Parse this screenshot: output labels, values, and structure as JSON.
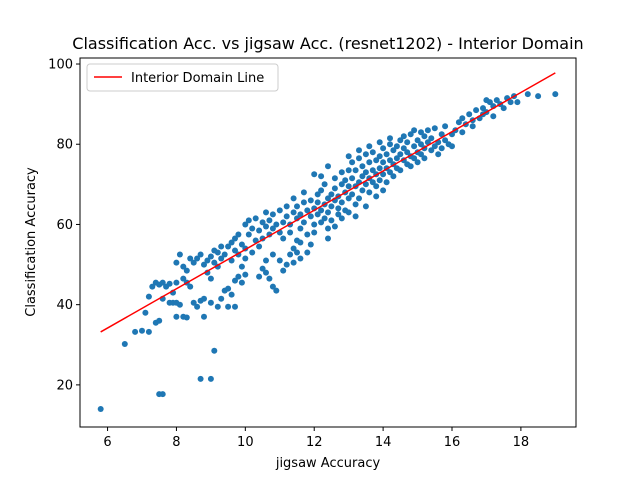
{
  "chart_data": {
    "type": "scatter",
    "title": "Classification Acc. vs jigsaw Acc. (resnet1202) - Interior Domain",
    "xlabel": "jigsaw Accuracy",
    "ylabel": "Classification Accuracy",
    "xlim": [
      5.2,
      19.6
    ],
    "ylim": [
      9.5,
      101.5
    ],
    "xticks": [
      6,
      8,
      10,
      12,
      14,
      16,
      18
    ],
    "yticks": [
      20,
      40,
      60,
      80,
      100
    ],
    "grid": false,
    "legend_position": "top-left",
    "series": [
      {
        "kind": "scatter",
        "color": "#1f77b4",
        "points": [
          [
            5.8,
            14.0
          ],
          [
            6.5,
            30.2
          ],
          [
            6.8,
            33.2
          ],
          [
            7.0,
            33.5
          ],
          [
            7.2,
            33.2
          ],
          [
            7.1,
            38.0
          ],
          [
            7.2,
            42.0
          ],
          [
            7.4,
            35.5
          ],
          [
            7.5,
            36.0
          ],
          [
            7.5,
            17.7
          ],
          [
            7.6,
            17.7
          ],
          [
            7.3,
            44.5
          ],
          [
            7.4,
            45.5
          ],
          [
            7.5,
            45.0
          ],
          [
            7.6,
            45.5
          ],
          [
            7.7,
            44.5
          ],
          [
            7.8,
            45.2
          ],
          [
            7.9,
            43.0
          ],
          [
            7.6,
            41.5
          ],
          [
            7.8,
            40.5
          ],
          [
            8.0,
            45.5
          ],
          [
            7.9,
            40.5
          ],
          [
            8.0,
            40.5
          ],
          [
            8.1,
            40.0
          ],
          [
            8.0,
            37.0
          ],
          [
            8.2,
            37.0
          ],
          [
            8.3,
            36.8
          ],
          [
            8.0,
            50.5
          ],
          [
            8.1,
            52.5
          ],
          [
            8.2,
            49.5
          ],
          [
            8.2,
            46.5
          ],
          [
            8.3,
            45.5
          ],
          [
            8.4,
            44.5
          ],
          [
            8.3,
            48.5
          ],
          [
            8.4,
            51.5
          ],
          [
            8.5,
            50.5
          ],
          [
            8.5,
            40.5
          ],
          [
            8.6,
            39.5
          ],
          [
            8.7,
            41.0
          ],
          [
            8.8,
            41.5
          ],
          [
            8.8,
            37.0
          ],
          [
            8.6,
            51.5
          ],
          [
            8.7,
            52.5
          ],
          [
            8.8,
            50.0
          ],
          [
            8.9,
            51.0
          ],
          [
            8.9,
            48.0
          ],
          [
            9.0,
            52.0
          ],
          [
            9.0,
            46.5
          ],
          [
            9.1,
            50.5
          ],
          [
            9.1,
            53.5
          ],
          [
            9.2,
            53.0
          ],
          [
            9.2,
            49.5
          ],
          [
            9.3,
            54.5
          ],
          [
            9.3,
            51.5
          ],
          [
            8.7,
            21.5
          ],
          [
            9.0,
            21.5
          ],
          [
            9.1,
            28.5
          ],
          [
            9.0,
            40.5
          ],
          [
            9.2,
            39.5
          ],
          [
            9.3,
            41.5
          ],
          [
            9.4,
            43.5
          ],
          [
            9.5,
            44.0
          ],
          [
            9.6,
            42.5
          ],
          [
            9.4,
            52.5
          ],
          [
            9.5,
            54.5
          ],
          [
            9.6,
            55.5
          ],
          [
            9.6,
            51.0
          ],
          [
            9.7,
            56.5
          ],
          [
            9.7,
            53.5
          ],
          [
            9.8,
            57.5
          ],
          [
            9.8,
            52.5
          ],
          [
            9.9,
            55.0
          ],
          [
            9.7,
            46.0
          ],
          [
            9.8,
            47.0
          ],
          [
            9.9,
            45.5
          ],
          [
            10.0,
            47.5
          ],
          [
            9.5,
            39.5
          ],
          [
            9.7,
            39.5
          ],
          [
            9.9,
            49.5
          ],
          [
            10.0,
            51.5
          ],
          [
            10.0,
            54.0
          ],
          [
            10.0,
            60.0
          ],
          [
            10.1,
            61.0
          ],
          [
            10.1,
            57.5
          ],
          [
            10.2,
            59.0
          ],
          [
            10.2,
            53.0
          ],
          [
            10.3,
            56.0
          ],
          [
            10.3,
            61.5
          ],
          [
            10.4,
            58.5
          ],
          [
            10.4,
            54.5
          ],
          [
            10.5,
            60.5
          ],
          [
            10.5,
            56.5
          ],
          [
            10.6,
            59.5
          ],
          [
            10.6,
            63.0
          ],
          [
            10.7,
            57.5
          ],
          [
            10.7,
            61.0
          ],
          [
            10.8,
            59.0
          ],
          [
            10.8,
            62.5
          ],
          [
            10.9,
            60.0
          ],
          [
            10.4,
            47.0
          ],
          [
            10.5,
            49.0
          ],
          [
            10.6,
            48.0
          ],
          [
            10.7,
            46.5
          ],
          [
            10.8,
            44.5
          ],
          [
            10.9,
            43.5
          ],
          [
            10.6,
            51.0
          ],
          [
            10.8,
            52.5
          ],
          [
            11.0,
            51.0
          ],
          [
            11.0,
            58.0
          ],
          [
            11.0,
            63.5
          ],
          [
            11.1,
            60.5
          ],
          [
            11.1,
            56.5
          ],
          [
            11.2,
            62.0
          ],
          [
            11.2,
            64.5
          ],
          [
            11.3,
            60.0
          ],
          [
            11.3,
            58.0
          ],
          [
            11.4,
            63.0
          ],
          [
            11.1,
            48.5
          ],
          [
            11.2,
            50.0
          ],
          [
            11.3,
            52.5
          ],
          [
            11.4,
            54.0
          ],
          [
            11.5,
            56.0
          ],
          [
            11.4,
            50.5
          ],
          [
            11.5,
            53.0
          ],
          [
            11.6,
            55.5
          ],
          [
            11.6,
            51.5
          ],
          [
            11.4,
            66.5
          ],
          [
            11.5,
            61.5
          ],
          [
            11.5,
            64.5
          ],
          [
            11.6,
            62.5
          ],
          [
            11.6,
            59.0
          ],
          [
            11.7,
            65.5
          ],
          [
            11.7,
            60.5
          ],
          [
            11.8,
            63.5
          ],
          [
            11.8,
            57.5
          ],
          [
            11.7,
            68.0
          ],
          [
            11.8,
            53.0
          ],
          [
            11.9,
            55.0
          ],
          [
            11.9,
            62.0
          ],
          [
            11.9,
            66.0
          ],
          [
            12.0,
            64.0
          ],
          [
            12.0,
            60.0
          ],
          [
            12.0,
            58.0
          ],
          [
            12.1,
            67.5
          ],
          [
            12.1,
            62.5
          ],
          [
            12.1,
            65.5
          ],
          [
            12.2,
            63.5
          ],
          [
            12.2,
            60.5
          ],
          [
            12.2,
            68.5
          ],
          [
            12.3,
            65.0
          ],
          [
            12.3,
            61.5
          ],
          [
            12.3,
            70.0
          ],
          [
            12.4,
            66.5
          ],
          [
            12.4,
            63.0
          ],
          [
            12.4,
            59.0
          ],
          [
            12.5,
            67.5
          ],
          [
            12.5,
            64.5
          ],
          [
            12.5,
            61.0
          ],
          [
            12.6,
            69.0
          ],
          [
            12.6,
            66.0
          ],
          [
            12.6,
            71.5
          ],
          [
            12.7,
            64.0
          ],
          [
            12.7,
            67.0
          ],
          [
            12.7,
            62.5
          ],
          [
            12.8,
            70.0
          ],
          [
            12.8,
            65.5
          ],
          [
            12.8,
            73.0
          ],
          [
            12.9,
            68.0
          ],
          [
            12.9,
            63.5
          ],
          [
            12.9,
            71.0
          ],
          [
            13.0,
            66.5
          ],
          [
            12.0,
            72.5
          ],
          [
            12.2,
            72.0
          ],
          [
            12.4,
            74.5
          ],
          [
            12.6,
            59.5
          ],
          [
            12.8,
            61.5
          ],
          [
            12.4,
            56.5
          ],
          [
            13.0,
            69.5
          ],
          [
            13.0,
            73.5
          ],
          [
            13.0,
            63.0
          ],
          [
            13.1,
            71.5
          ],
          [
            13.1,
            67.5
          ],
          [
            13.1,
            75.5
          ],
          [
            13.2,
            69.5
          ],
          [
            13.2,
            65.0
          ],
          [
            13.2,
            73.5
          ],
          [
            13.3,
            70.5
          ],
          [
            13.3,
            66.5
          ],
          [
            13.3,
            76.5
          ],
          [
            13.4,
            72.0
          ],
          [
            13.4,
            68.5
          ],
          [
            13.4,
            74.5
          ],
          [
            13.5,
            70.0
          ],
          [
            13.5,
            77.5
          ],
          [
            13.5,
            73.0
          ],
          [
            13.6,
            71.5
          ],
          [
            13.6,
            68.0
          ],
          [
            13.6,
            75.5
          ],
          [
            13.7,
            73.5
          ],
          [
            13.7,
            70.5
          ],
          [
            13.7,
            78.0
          ],
          [
            13.8,
            72.5
          ],
          [
            13.8,
            76.0
          ],
          [
            13.8,
            69.5
          ],
          [
            13.9,
            74.0
          ],
          [
            13.9,
            77.0
          ],
          [
            13.9,
            71.0
          ],
          [
            14.0,
            75.5
          ],
          [
            14.0,
            72.5
          ],
          [
            14.0,
            79.0
          ],
          [
            14.1,
            74.0
          ],
          [
            14.1,
            77.5
          ],
          [
            14.1,
            70.5
          ],
          [
            14.2,
            76.0
          ],
          [
            14.2,
            73.0
          ],
          [
            14.2,
            80.0
          ],
          [
            14.3,
            75.0
          ],
          [
            14.3,
            78.5
          ],
          [
            14.3,
            72.0
          ],
          [
            14.4,
            76.5
          ],
          [
            14.4,
            79.5
          ],
          [
            14.4,
            74.0
          ],
          [
            14.5,
            77.5
          ],
          [
            14.5,
            81.0
          ],
          [
            14.5,
            73.5
          ],
          [
            13.2,
            62.0
          ],
          [
            13.5,
            64.5
          ],
          [
            13.8,
            67.0
          ],
          [
            14.0,
            68.5
          ],
          [
            14.2,
            81.5
          ],
          [
            13.9,
            80.5
          ],
          [
            13.6,
            79.5
          ],
          [
            13.3,
            78.5
          ],
          [
            13.0,
            77.0
          ],
          [
            14.6,
            76.0
          ],
          [
            14.6,
            79.0
          ],
          [
            14.6,
            82.0
          ],
          [
            14.7,
            75.0
          ],
          [
            14.7,
            78.0
          ],
          [
            14.7,
            80.5
          ],
          [
            14.8,
            77.0
          ],
          [
            14.8,
            74.5
          ],
          [
            14.8,
            82.5
          ],
          [
            14.9,
            79.5
          ],
          [
            14.9,
            76.5
          ],
          [
            14.9,
            83.5
          ],
          [
            15.0,
            78.0
          ],
          [
            15.0,
            81.0
          ],
          [
            15.0,
            75.5
          ],
          [
            15.1,
            80.0
          ],
          [
            15.1,
            77.5
          ],
          [
            15.1,
            83.0
          ],
          [
            15.2,
            79.0
          ],
          [
            15.2,
            82.0
          ],
          [
            15.2,
            76.5
          ],
          [
            15.3,
            80.5
          ],
          [
            15.3,
            83.5
          ],
          [
            15.4,
            78.5
          ],
          [
            15.4,
            81.5
          ],
          [
            15.5,
            79.5
          ],
          [
            15.5,
            84.0
          ],
          [
            15.6,
            80.5
          ],
          [
            15.6,
            77.5
          ],
          [
            15.7,
            82.5
          ],
          [
            15.7,
            79.0
          ],
          [
            15.8,
            81.0
          ],
          [
            15.8,
            84.5
          ],
          [
            15.9,
            80.0
          ],
          [
            16.0,
            82.5
          ],
          [
            16.0,
            79.5
          ],
          [
            16.1,
            83.5
          ],
          [
            16.2,
            85.5
          ],
          [
            16.3,
            86.5
          ],
          [
            16.4,
            85.0
          ],
          [
            16.5,
            87.5
          ],
          [
            16.6,
            86.0
          ],
          [
            16.7,
            88.5
          ],
          [
            16.8,
            86.5
          ],
          [
            16.9,
            89.0
          ],
          [
            17.0,
            88.0
          ],
          [
            17.1,
            90.5
          ],
          [
            17.2,
            89.5
          ],
          [
            17.3,
            91.0
          ],
          [
            17.4,
            90.0
          ],
          [
            17.5,
            89.0
          ],
          [
            17.6,
            91.5
          ],
          [
            17.7,
            90.5
          ],
          [
            17.8,
            92.0
          ],
          [
            17.0,
            91.0
          ],
          [
            17.2,
            87.0
          ],
          [
            16.9,
            87.5
          ],
          [
            16.6,
            84.5
          ],
          [
            16.3,
            83.0
          ],
          [
            18.2,
            92.5
          ],
          [
            18.5,
            92.0
          ],
          [
            19.0,
            92.5
          ],
          [
            17.9,
            90.5
          ]
        ]
      },
      {
        "kind": "line",
        "name": "Interior Domain Line",
        "color": "#ff0000",
        "x": [
          5.8,
          19.0
        ],
        "y": [
          33.2,
          97.8
        ]
      }
    ]
  }
}
